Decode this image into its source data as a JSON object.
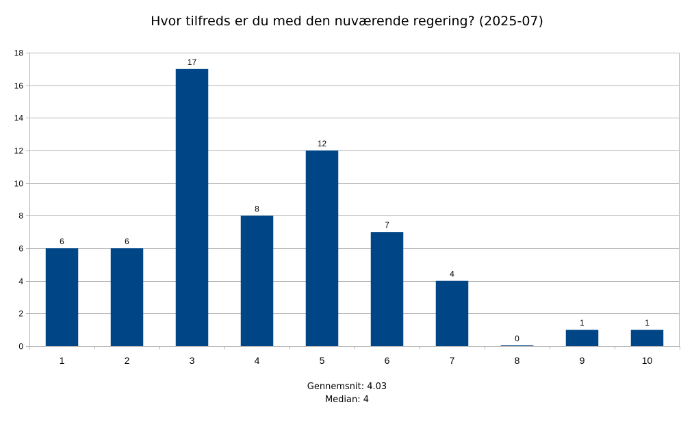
{
  "chart_data": {
    "type": "bar",
    "title": "Hvor tilfreds er du med den nuværende regering? (2025-07)",
    "xlabel": "",
    "ylabel": "",
    "categories": [
      "1",
      "2",
      "3",
      "4",
      "5",
      "6",
      "7",
      "8",
      "9",
      "10"
    ],
    "values": [
      6,
      6,
      17,
      8,
      12,
      7,
      4,
      0,
      1,
      1
    ],
    "ylim": [
      0,
      18
    ],
    "yticks": [
      0,
      2,
      4,
      6,
      8,
      10,
      12,
      14,
      16,
      18
    ],
    "grid": true,
    "legend": "none",
    "bar_color": "#004586",
    "data_labels": true
  },
  "summary": {
    "mean": "Gennemsnit: 4.03",
    "median": "Median: 4"
  }
}
